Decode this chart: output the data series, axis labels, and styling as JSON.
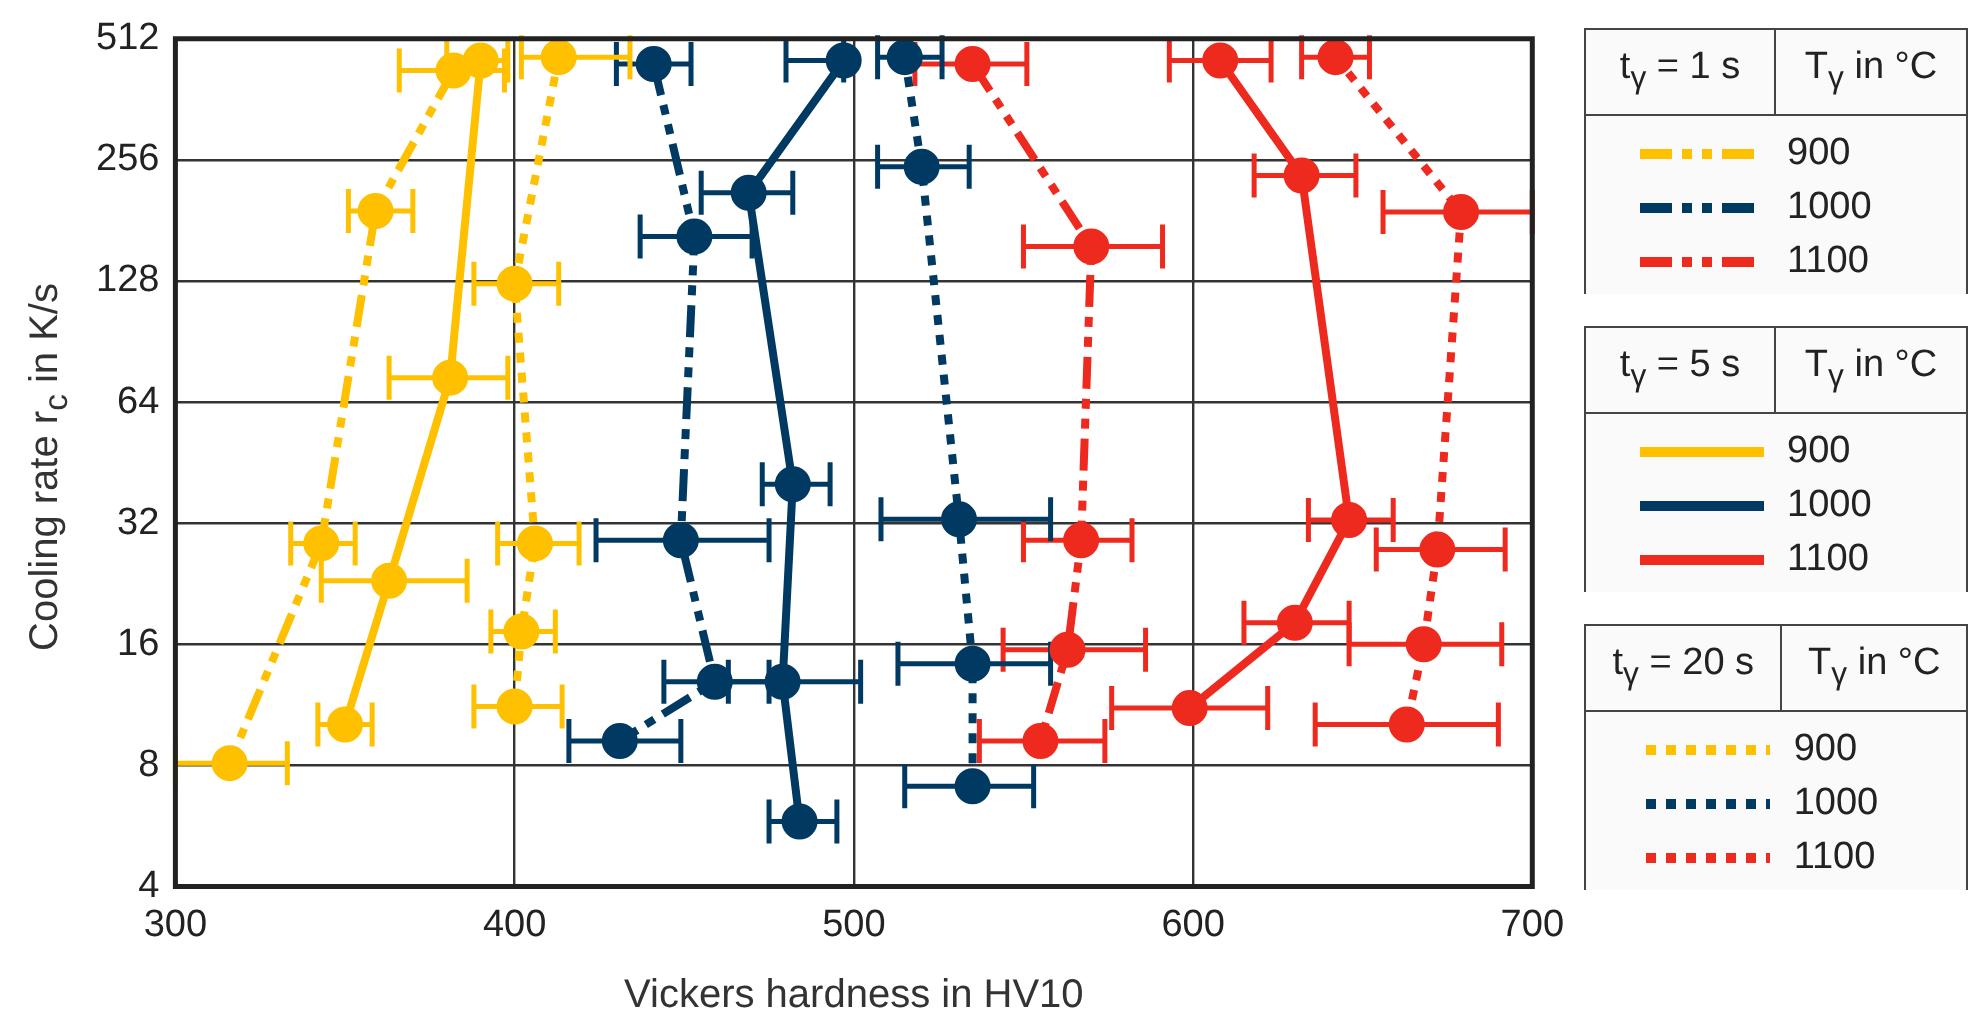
{
  "chart_data": {
    "type": "line",
    "xlabel": "Vickers hardness in HV10",
    "ylabel": "Cooling rate r$_{c}$ in K/s",
    "annotations": [
      "t$_{γ}$ = 1 s",
      "T$_{γ}$ in °C",
      "t$_{γ}$ = 5 s",
      "T$_{γ}$ in °C",
      "t$_{γ}$ = 20 s",
      "T$_{γ}$ in °C"
    ],
    "xlim": [
      300,
      700
    ],
    "xticks": [
      300,
      400,
      500,
      600,
      700
    ],
    "ylim": [
      4,
      512
    ],
    "yticks": [
      4,
      8,
      16,
      32,
      64,
      128,
      256,
      512
    ],
    "log": "y",
    "grid": true,
    "legend": "right",
    "marker": "circle",
    "series": [
      {
        "name": "900",
        "color": "#ffc000",
        "line_style": "dashed",
        "x": [
          382,
          359,
          343,
          316
        ],
        "values": [
          427,
          191,
          28.5,
          8.1
        ],
        "xerrors": [
          [
            366,
            397
          ],
          [
            351,
            370
          ],
          [
            334,
            353
          ],
          [
            300,
            333
          ]
        ]
      },
      {
        "name": "1000",
        "color": "#003a63",
        "line_style": "dashed",
        "x": [
          441,
          453,
          449,
          459,
          431
        ],
        "values": [
          443,
          165,
          29,
          12.9,
          9.2
        ],
        "xerrors": [
          [
            430,
            452
          ],
          [
            437,
            470
          ],
          [
            424,
            475
          ],
          [
            444,
            475
          ],
          [
            416,
            449
          ]
        ]
      },
      {
        "name": "1100",
        "color": "#ee2a1f",
        "line_style": "dashed",
        "x": [
          535,
          570,
          567,
          563,
          555
        ],
        "values": [
          443,
          156,
          29,
          15.5,
          9.2
        ],
        "xerrors": [
          [
            518,
            551
          ],
          [
            550,
            591
          ],
          [
            550,
            582
          ],
          [
            544,
            586
          ],
          [
            537,
            574
          ]
        ]
      },
      {
        "name": "900",
        "color": "#ffc000",
        "line_style": "solid",
        "x": [
          390,
          381,
          363,
          350
        ],
        "values": [
          452,
          73.6,
          23,
          10.1
        ],
        "xerrors": [
          [
            380,
            398
          ],
          [
            363,
            398
          ],
          [
            343,
            386
          ],
          [
            342,
            358
          ]
        ]
      },
      {
        "name": "1000",
        "color": "#003a63",
        "line_style": "solid",
        "x": [
          497,
          469,
          482,
          479,
          484
        ],
        "values": [
          452,
          212,
          40,
          12.9,
          5.8
        ],
        "xerrors": [
          [
            480,
            497
          ],
          [
            455,
            482
          ],
          [
            473,
            493
          ],
          [
            463,
            502
          ],
          [
            475,
            495
          ]
        ]
      },
      {
        "name": "1100",
        "color": "#ee2a1f",
        "line_style": "solid",
        "x": [
          608,
          632,
          646,
          630,
          599
        ],
        "values": [
          452,
          234,
          32.6,
          18.1,
          11.1
        ],
        "xerrors": [
          [
            593,
            623
          ],
          [
            618,
            648
          ],
          [
            634,
            659
          ],
          [
            615,
            646
          ],
          [
            576,
            622
          ]
        ]
      },
      {
        "name": "900",
        "color": "#ffc000",
        "line_style": "dotted",
        "x": [
          413,
          400,
          406,
          402,
          400
        ],
        "values": [
          461,
          126,
          28.5,
          17.2,
          11.2
        ],
        "xerrors": [
          [
            402,
            434
          ],
          [
            388,
            413
          ],
          [
            395,
            419
          ],
          [
            393,
            412
          ],
          [
            388,
            414
          ]
        ]
      },
      {
        "name": "1000",
        "color": "#003a63",
        "line_style": "dotted",
        "x": [
          515,
          520,
          531,
          535,
          535
        ],
        "values": [
          461,
          246,
          32.7,
          14.3,
          7.1
        ],
        "xerrors": [
          [
            507,
            526
          ],
          [
            507,
            534
          ],
          [
            508,
            558
          ],
          [
            513,
            558
          ],
          [
            515,
            553
          ]
        ]
      },
      {
        "name": "1100",
        "color": "#ee2a1f",
        "line_style": "dotted",
        "x": [
          642,
          679,
          672,
          668,
          663
        ],
        "values": [
          461,
          190,
          27.5,
          16,
          10.1
        ],
        "xerrors": [
          [
            632,
            652
          ],
          [
            656,
            700
          ],
          [
            654,
            692
          ],
          [
            646,
            691
          ],
          [
            636,
            690
          ]
        ]
      }
    ]
  }
}
